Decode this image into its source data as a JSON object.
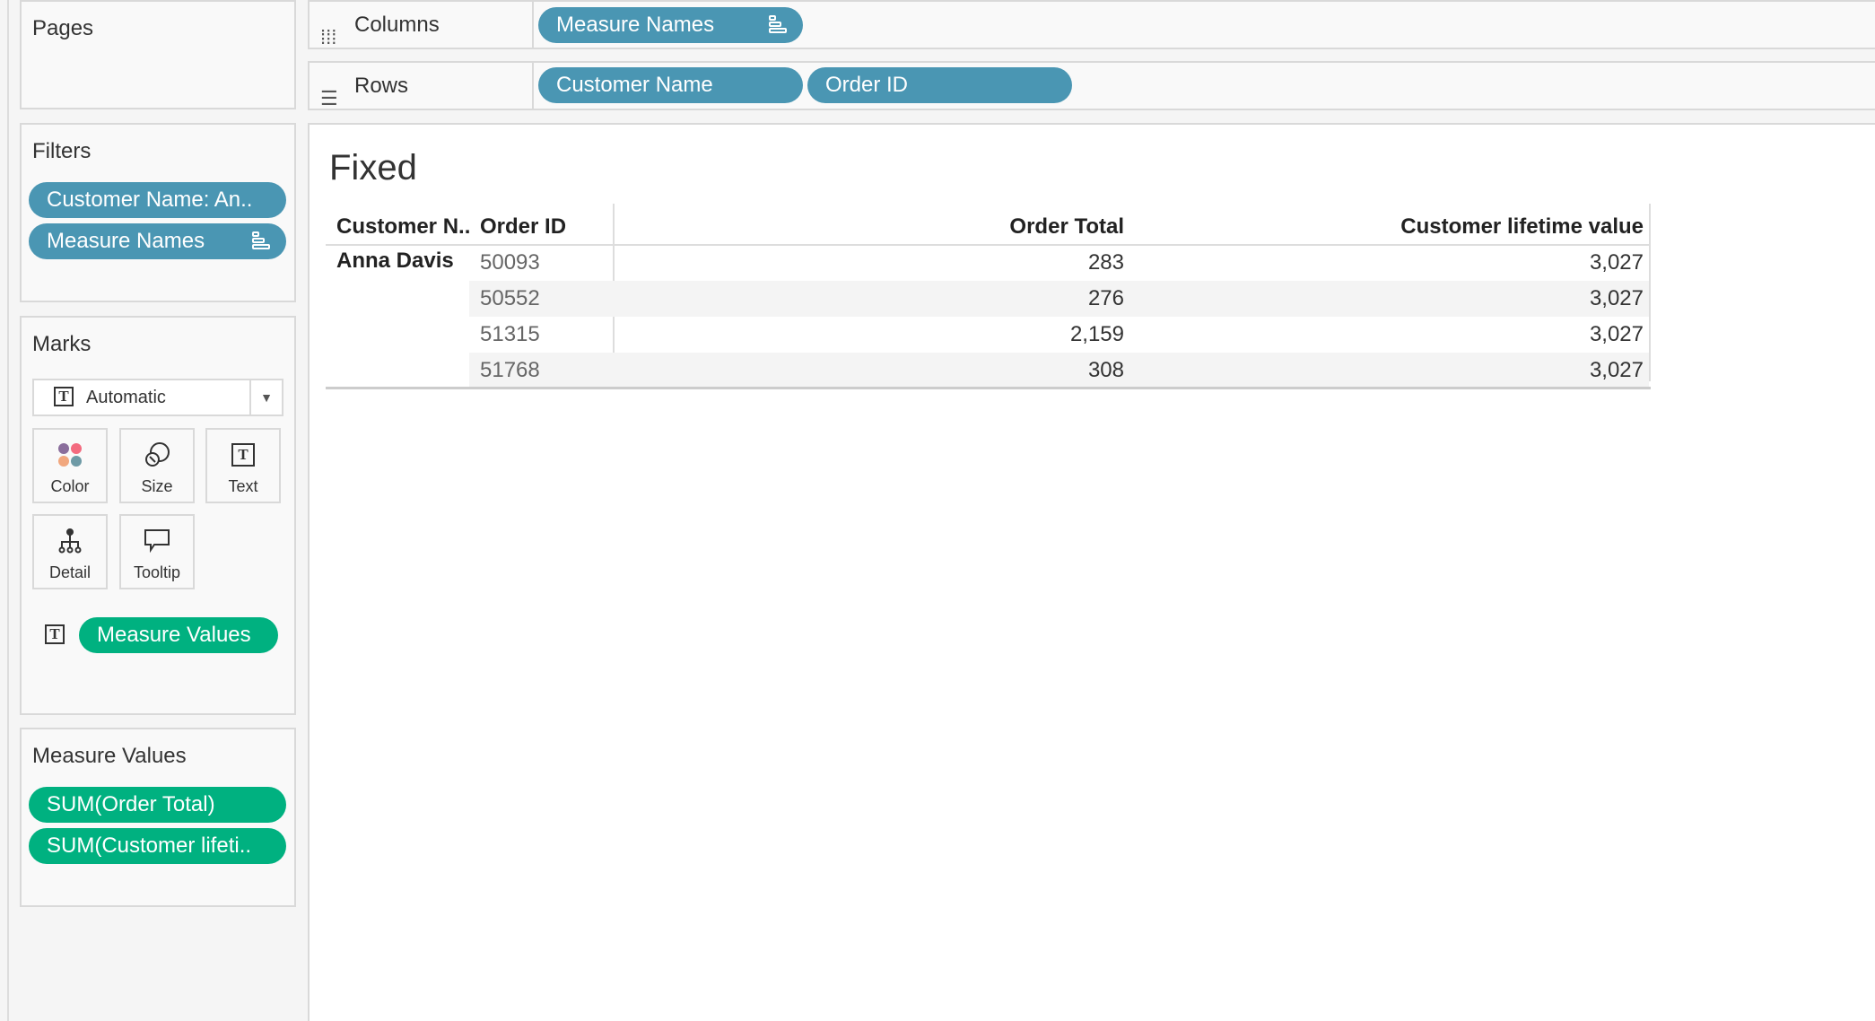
{
  "pages": {
    "title": "Pages"
  },
  "filters": {
    "title": "Filters",
    "items": [
      "Customer Name: An..",
      "Measure Names"
    ]
  },
  "marks": {
    "title": "Marks",
    "mark_type": "Automatic",
    "buttons": [
      "Color",
      "Size",
      "Text",
      "Detail",
      "Tooltip"
    ],
    "text_pill": "Measure Values"
  },
  "measure_values": {
    "title": "Measure Values",
    "items": [
      "SUM(Order Total)",
      "SUM(Customer lifeti.."
    ]
  },
  "columns": {
    "label": "Columns",
    "pills": [
      "Measure Names"
    ]
  },
  "rows": {
    "label": "Rows",
    "pills": [
      "Customer Name",
      "Order ID"
    ]
  },
  "colors": {
    "dimension_pill": "#4a96b3",
    "measure_pill": "#00b180"
  },
  "view": {
    "title": "Fixed",
    "headers": [
      "Customer N..",
      "Order ID",
      "Order Total",
      "Customer lifetime value"
    ],
    "customer": "Anna Davis",
    "rows": [
      {
        "order_id": "50093",
        "order_total": "283",
        "clv": "3,027"
      },
      {
        "order_id": "50552",
        "order_total": "276",
        "clv": "3,027"
      },
      {
        "order_id": "51315",
        "order_total": "2,159",
        "clv": "3,027"
      },
      {
        "order_id": "51768",
        "order_total": "308",
        "clv": "3,027"
      }
    ]
  }
}
